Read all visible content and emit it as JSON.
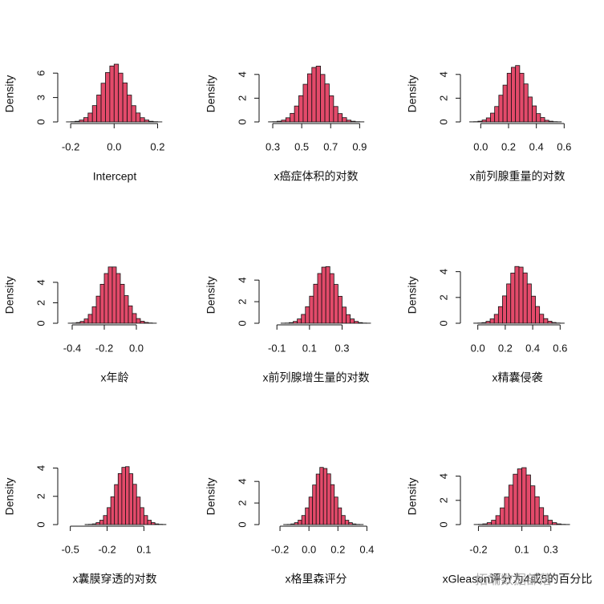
{
  "chart_data": [
    {
      "type": "histogram",
      "xlabel": "Intercept",
      "ylabel": "Density",
      "color": "#e34a6a",
      "bins": [
        -0.22,
        -0.2,
        -0.18,
        -0.16,
        -0.14,
        -0.12,
        -0.1,
        -0.08,
        -0.06,
        -0.04,
        -0.02,
        0,
        0.02,
        0.04,
        0.06,
        0.08,
        0.1,
        0.12,
        0.14,
        0.16,
        0.18,
        0.2,
        0.22
      ],
      "values": [
        0.01,
        0.03,
        0.08,
        0.23,
        0.53,
        1.09,
        2.01,
        3.31,
        4.76,
        6.07,
        6.88,
        7.1,
        6.0,
        4.8,
        3.3,
        2.0,
        1.1,
        0.52,
        0.23,
        0.08,
        0.03,
        0.01
      ],
      "xlim": [
        -0.23,
        0.25
      ],
      "xticks": [
        -0.2,
        {
          "value": 0,
          "label": "0.0"
        },
        0.2
      ],
      "ylim": [
        0,
        7.3
      ],
      "yticks": [
        0,
        3,
        6
      ]
    },
    {
      "type": "histogram",
      "xlabel": "x癌症体积的对数",
      "ylabel": "Density",
      "color": "#e34a6a",
      "bins": [
        0.27,
        0.3,
        0.33,
        0.36,
        0.39,
        0.42,
        0.45,
        0.48,
        0.51,
        0.54,
        0.57,
        0.6,
        0.63,
        0.66,
        0.69,
        0.72,
        0.75,
        0.78,
        0.81,
        0.84,
        0.87,
        0.9,
        0.93
      ],
      "values": [
        0.01,
        0.02,
        0.06,
        0.15,
        0.35,
        0.72,
        1.34,
        2.21,
        3.17,
        4.05,
        4.59,
        4.7,
        4.0,
        3.2,
        2.2,
        1.3,
        0.7,
        0.36,
        0.15,
        0.06,
        0.02,
        0.01
      ],
      "xlim": [
        0.25,
        0.97
      ],
      "xticks": [
        0.3,
        0.5,
        0.7,
        0.9
      ],
      "ylim": [
        0,
        5
      ],
      "yticks": [
        0,
        2,
        4
      ]
    },
    {
      "type": "histogram",
      "xlabel": "x前列腺重量的对数",
      "ylabel": "Density",
      "color": "#e34a6a",
      "bins": [
        -0.08,
        -0.05,
        -0.02,
        0.01,
        0.04,
        0.07,
        0.1,
        0.13,
        0.16,
        0.19,
        0.22,
        0.25,
        0.28,
        0.31,
        0.34,
        0.37,
        0.4,
        0.43,
        0.46,
        0.49,
        0.52,
        0.55,
        0.58
      ],
      "values": [
        0.01,
        0.02,
        0.06,
        0.16,
        0.34,
        0.74,
        1.3,
        2.25,
        3.1,
        4.1,
        4.6,
        4.75,
        4.1,
        3.2,
        2.1,
        1.35,
        0.7,
        0.37,
        0.14,
        0.06,
        0.02,
        0.01
      ],
      "xlim": [
        -0.1,
        0.65
      ],
      "xticks": [
        {
          "value": 0,
          "label": "0.0"
        },
        0.2,
        0.4,
        0.6
      ],
      "ylim": [
        0,
        5
      ],
      "yticks": [
        0,
        2,
        4
      ]
    },
    {
      "type": "histogram",
      "xlabel": "x年龄",
      "ylabel": "Density",
      "color": "#e34a6a",
      "bins": [
        -0.425,
        -0.4,
        -0.375,
        -0.35,
        -0.325,
        -0.3,
        -0.275,
        -0.25,
        -0.225,
        -0.2,
        -0.175,
        -0.15,
        -0.125,
        -0.1,
        -0.075,
        -0.05,
        -0.025,
        0,
        0.025,
        0.05,
        0.075,
        0.1,
        0.125
      ],
      "values": [
        0.01,
        0.02,
        0.07,
        0.18,
        0.42,
        0.87,
        1.61,
        2.65,
        3.81,
        4.86,
        5.5,
        5.5,
        4.86,
        3.81,
        2.7,
        1.7,
        0.95,
        0.46,
        0.2,
        0.08,
        0.03,
        0.01
      ],
      "xlim": [
        -0.45,
        0.2
      ],
      "xticks": [
        -0.4,
        -0.2,
        {
          "value": 0,
          "label": "0.0"
        }
      ],
      "ylim": [
        0,
        5.8
      ],
      "yticks": [
        0,
        2,
        4
      ]
    },
    {
      "type": "histogram",
      "xlabel": "x前列腺增生量的对数",
      "ylabel": "Density",
      "color": "#e34a6a",
      "bins": [
        -0.075,
        -0.05,
        -0.025,
        0,
        0.025,
        0.05,
        0.075,
        0.1,
        0.125,
        0.15,
        0.175,
        0.2,
        0.225,
        0.25,
        0.275,
        0.3,
        0.325,
        0.35,
        0.375,
        0.4,
        0.425,
        0.45,
        0.475
      ],
      "values": [
        0.01,
        0.02,
        0.06,
        0.17,
        0.4,
        0.82,
        1.53,
        2.51,
        3.62,
        4.61,
        5.2,
        5.25,
        4.6,
        3.6,
        2.5,
        1.5,
        0.8,
        0.4,
        0.17,
        0.06,
        0.02,
        0.01
      ],
      "xlim": [
        -0.17,
        0.47
      ],
      "xticks": [
        -0.1,
        0.1,
        0.3
      ],
      "ylim": [
        0,
        5.5
      ],
      "yticks": [
        0,
        2,
        4
      ]
    },
    {
      "type": "histogram",
      "xlabel": "x精囊侵袭",
      "ylabel": "Density",
      "color": "#e34a6a",
      "bins": [
        -0.03,
        0,
        0.03,
        0.06,
        0.09,
        0.12,
        0.15,
        0.18,
        0.21,
        0.24,
        0.27,
        0.3,
        0.33,
        0.36,
        0.39,
        0.42,
        0.45,
        0.48,
        0.51,
        0.54,
        0.57,
        0.6,
        0.63
      ],
      "values": [
        0.01,
        0.02,
        0.05,
        0.15,
        0.34,
        0.69,
        1.29,
        2.12,
        3.05,
        3.89,
        4.4,
        4.35,
        3.9,
        3.05,
        2.1,
        1.3,
        0.7,
        0.36,
        0.16,
        0.06,
        0.02,
        0.01
      ],
      "xlim": [
        -0.08,
        0.68
      ],
      "xticks": [
        {
          "value": 0,
          "label": "0.0"
        },
        0.2,
        0.4,
        0.6
      ],
      "ylim": [
        0,
        4.6
      ],
      "yticks": [
        0,
        2,
        4
      ]
    },
    {
      "type": "histogram",
      "xlabel": "x囊膜穿透的对数",
      "ylabel": "Density",
      "color": "#e34a6a",
      "bins": [
        -0.38,
        -0.35,
        -0.32,
        -0.29,
        -0.26,
        -0.23,
        -0.2,
        -0.17,
        -0.14,
        -0.11,
        -0.08,
        -0.05,
        -0.02,
        0.01,
        0.04,
        0.07,
        0.1,
        0.13,
        0.16,
        0.19,
        0.22,
        0.25,
        0.28
      ],
      "values": [
        0.01,
        0.02,
        0.05,
        0.14,
        0.31,
        0.64,
        1.2,
        1.97,
        2.83,
        3.61,
        4.05,
        4.1,
        3.6,
        2.85,
        1.95,
        1.2,
        0.64,
        0.31,
        0.14,
        0.05,
        0.02,
        0.01
      ],
      "xlim": [
        -0.55,
        0.3
      ],
      "xticks": [
        -0.5,
        -0.2,
        0.1
      ],
      "ylim": [
        0,
        4.2
      ],
      "yticks": [
        0,
        2,
        4
      ]
    },
    {
      "type": "histogram",
      "xlabel": "x格里森评分",
      "ylabel": "Density",
      "color": "#e34a6a",
      "bins": [
        -0.175,
        -0.15,
        -0.125,
        -0.1,
        -0.075,
        -0.05,
        -0.025,
        0,
        0.025,
        0.05,
        0.075,
        0.1,
        0.125,
        0.15,
        0.175,
        0.2,
        0.225,
        0.25,
        0.275,
        0.3,
        0.325,
        0.35,
        0.375
      ],
      "values": [
        0.01,
        0.02,
        0.06,
        0.18,
        0.41,
        0.84,
        1.55,
        2.55,
        3.67,
        4.68,
        5.3,
        5.2,
        4.7,
        3.7,
        2.55,
        1.55,
        0.84,
        0.4,
        0.18,
        0.06,
        0.02,
        0.01
      ],
      "xlim": [
        -0.3,
        0.42
      ],
      "xticks": [
        -0.2,
        {
          "value": 0,
          "label": "0.0"
        },
        0.2,
        0.4
      ],
      "ylim": [
        0,
        5.5
      ],
      "yticks": [
        0,
        2,
        4
      ]
    },
    {
      "type": "histogram",
      "xlabel": "xGleason评分为4或5的百分比",
      "ylabel": "Density",
      "color": "#e34a6a",
      "bins": [
        -0.23,
        -0.2,
        -0.17,
        -0.14,
        -0.11,
        -0.08,
        -0.05,
        -0.02,
        0.01,
        0.04,
        0.07,
        0.1,
        0.13,
        0.16,
        0.19,
        0.22,
        0.25,
        0.28,
        0.31,
        0.34,
        0.37,
        0.4,
        0.43
      ],
      "values": [
        0.01,
        0.02,
        0.06,
        0.16,
        0.36,
        0.74,
        1.38,
        2.27,
        3.26,
        4.16,
        4.6,
        4.7,
        4.1,
        3.2,
        2.3,
        1.4,
        0.74,
        0.36,
        0.16,
        0.06,
        0.02,
        0.01
      ],
      "xlim": [
        -0.28,
        0.44
      ],
      "xticks": [
        -0.2,
        0.1,
        0.3
      ],
      "ylim": [
        0,
        4.9
      ],
      "yticks": [
        0,
        2,
        4
      ]
    }
  ],
  "watermark": "拓端数据部落"
}
